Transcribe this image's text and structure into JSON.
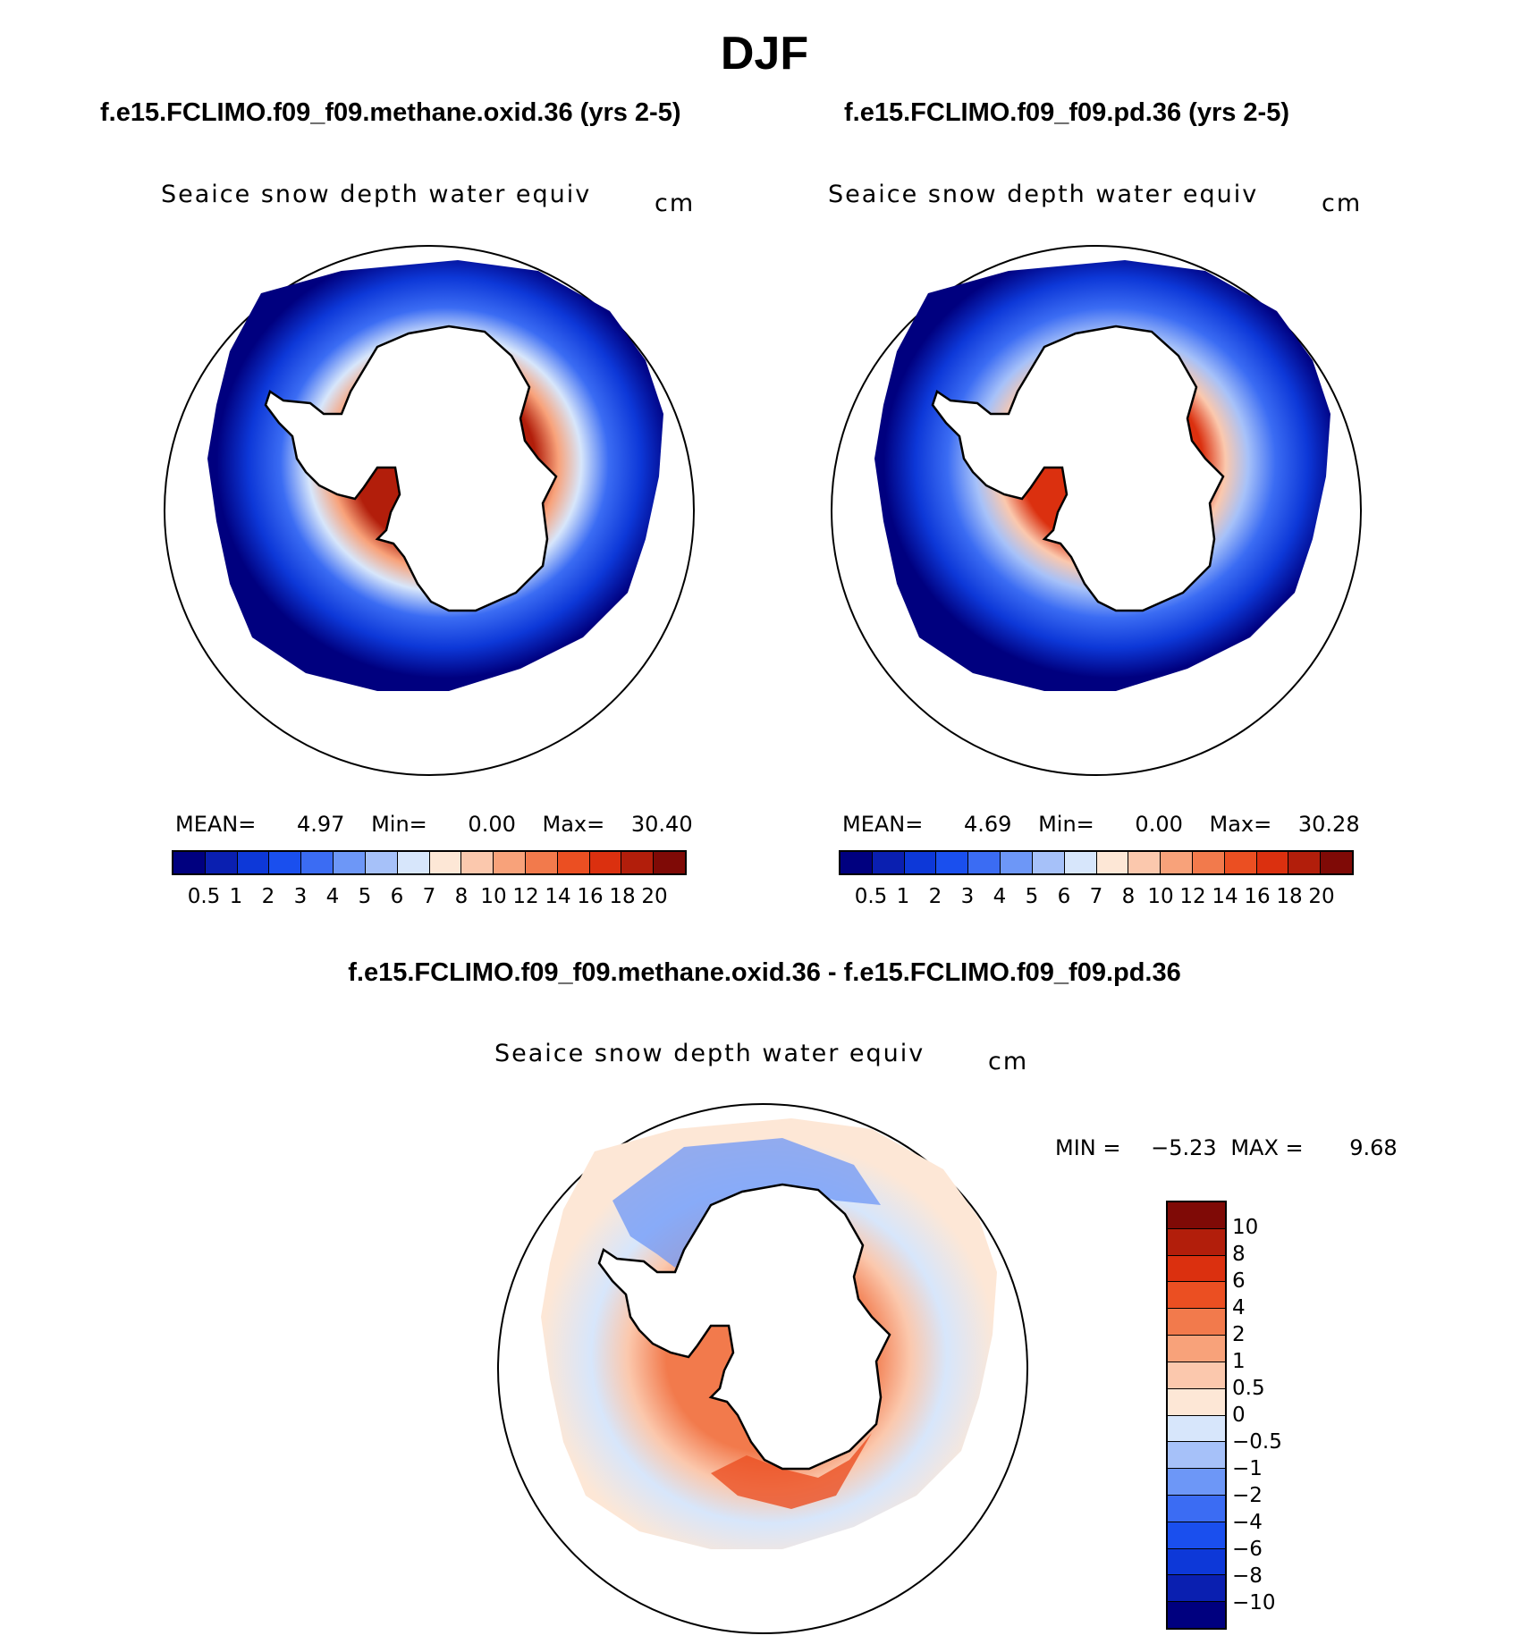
{
  "figure": {
    "title": "DJF"
  },
  "panels": [
    {
      "case_title": "f.e15.FCLIMO.f09_f09.methane.oxid.36 (yrs 2-5)",
      "variable": "Seaice snow depth water equiv",
      "units": "cm",
      "mean_label": "MEAN=",
      "mean_value": "4.97",
      "min_label": "Min=",
      "min_value": "0.00",
      "max_label": "Max=",
      "max_value": "30.40"
    },
    {
      "case_title": "f.e15.FCLIMO.f09_f09.pd.36 (yrs 2-5)",
      "variable": "Seaice snow depth water equiv",
      "units": "cm",
      "mean_label": "MEAN=",
      "mean_value": "4.69",
      "min_label": "Min=",
      "min_value": "0.00",
      "max_label": "Max=",
      "max_value": "30.28"
    }
  ],
  "diff_panel": {
    "case_title": "f.e15.FCLIMO.f09_f09.methane.oxid.36 - f.e15.FCLIMO.f09_f09.pd.36",
    "variable": "Seaice snow depth water equiv",
    "units": "cm",
    "min_label": "MIN =",
    "min_value": "−5.23",
    "max_label": "MAX =",
    "max_value": "9.68"
  },
  "abs_colorbar": {
    "labels": [
      "0.5",
      "1",
      "2",
      "3",
      "4",
      "5",
      "6",
      "7",
      "8",
      "10",
      "12",
      "14",
      "16",
      "18",
      "20"
    ],
    "colors": [
      "#00007f",
      "#0a1fb0",
      "#0d38d8",
      "#1a4fee",
      "#3b6cf3",
      "#6d97f7",
      "#a6c1f9",
      "#d7e6fb",
      "#fde7d6",
      "#fbc8ad",
      "#f8a27a",
      "#f27a4c",
      "#eb4f22",
      "#db300f",
      "#b21e0b",
      "#7f0a06"
    ]
  },
  "diff_colorbar": {
    "labels": [
      "10",
      "8",
      "6",
      "4",
      "2",
      "1",
      "0.5",
      "0",
      "−0.5",
      "−1",
      "−2",
      "−4",
      "−6",
      "−8",
      "−10"
    ],
    "colors": [
      "#7f0a06",
      "#b21e0b",
      "#db300f",
      "#eb4f22",
      "#f27a4c",
      "#f8a27a",
      "#fbc8ad",
      "#fde7d6",
      "#d7e6fb",
      "#a6c1f9",
      "#6d97f7",
      "#3b6cf3",
      "#1a4fee",
      "#0d38d8",
      "#0a1fb0",
      "#00007f"
    ]
  }
}
